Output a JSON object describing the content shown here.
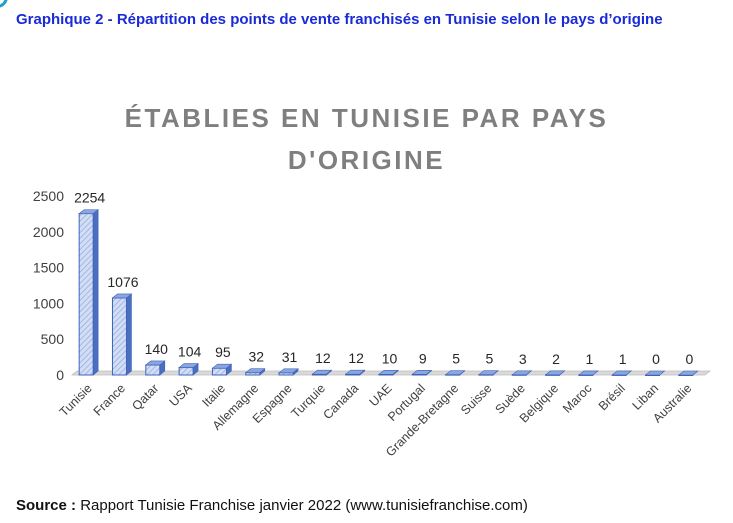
{
  "caption": "Graphique 2 - Répartition des points de vente franchisés en Tunisie selon le pays d’origine",
  "source": {
    "label": "Source :",
    "text": "Rapport Tunisie Franchise janvier 2022 (www.tunisiefranchise.com)"
  },
  "colors": {
    "bar_fill": "#c5d3f0",
    "bar_side": "#4a6ec0",
    "bar_top": "#8aa5e0",
    "bar_stroke": "#3f64b8",
    "title": "#7f7f7f",
    "caption": "#1a2bd6",
    "axis_text": "#404040"
  },
  "chart_data": {
    "type": "bar",
    "title_lines": [
      "ÉTABLIES EN TUNISIE PAR PAYS",
      "D'ORIGINE"
    ],
    "categories": [
      "Tunisie",
      "France",
      "Qatar",
      "USA",
      "Italie",
      "Allemagne",
      "Espagne",
      "Turquie",
      "Canada",
      "UAE",
      "Portugal",
      "Grande-Bretagne",
      "Suisse",
      "Suède",
      "Belgique",
      "Maroc",
      "Brésil",
      "Liban",
      "Australie"
    ],
    "values": [
      2254,
      1076,
      140,
      104,
      95,
      32,
      31,
      12,
      12,
      10,
      9,
      5,
      5,
      3,
      2,
      1,
      1,
      0,
      0
    ],
    "data_labels": [
      "2254",
      "1076",
      "140",
      "104",
      "95",
      "32",
      "31",
      "12",
      "12",
      "10",
      "9",
      "5",
      "5",
      "3",
      "2",
      "1",
      "1",
      "0",
      "0"
    ],
    "ylim": [
      0,
      2500
    ],
    "yticks": [
      "0",
      "500",
      "1000",
      "1500",
      "2000",
      "2500"
    ],
    "style": "3d-bar",
    "grid": false,
    "legend": "none"
  }
}
